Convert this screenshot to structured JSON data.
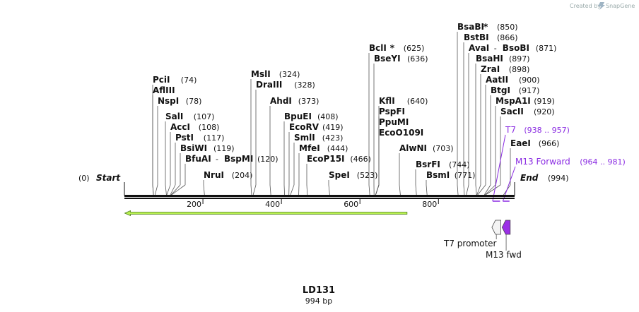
{
  "creator": {
    "label": "Created by",
    "brand": "SnapGene"
  },
  "title": "LD131",
  "subtitle": "994 bp",
  "sequence_length": 994,
  "ends": {
    "start_label": "Start",
    "start_pos": "(0)",
    "end_label": "End",
    "end_pos": "(994)"
  },
  "ticks": [
    {
      "value": 200,
      "label": "200"
    },
    {
      "value": 400,
      "label": "400"
    },
    {
      "value": 600,
      "label": "600"
    },
    {
      "value": 800,
      "label": "800"
    }
  ],
  "enzymes": [
    {
      "name": "PciI",
      "pos": "(74)",
      "site": 74
    },
    {
      "name": "AflIII",
      "pos": "",
      "site": 74
    },
    {
      "name": "NspI",
      "pos": "(78)",
      "site": 78
    },
    {
      "name": "SalI",
      "pos": "(107)",
      "site": 107
    },
    {
      "name": "AccI",
      "pos": "(108)",
      "site": 108
    },
    {
      "name": "PstI",
      "pos": "(117)",
      "site": 117
    },
    {
      "name": "BsiWI",
      "pos": "(119)",
      "site": 119
    },
    {
      "name": "BfuAI",
      "name2": "BspMI",
      "pos": "(120)",
      "site": 120
    },
    {
      "name": "NruI",
      "pos": "(204)",
      "site": 204
    },
    {
      "name": "MslI",
      "pos": "(324)",
      "site": 324
    },
    {
      "name": "DraIII",
      "pos": "(328)",
      "site": 328
    },
    {
      "name": "AhdI",
      "pos": "(373)",
      "site": 373
    },
    {
      "name": "BpuEI",
      "pos": "(408)",
      "site": 408
    },
    {
      "name": "EcoRV",
      "pos": "(419)",
      "site": 419
    },
    {
      "name": "SmlI",
      "pos": "(423)",
      "site": 423
    },
    {
      "name": "MfeI",
      "pos": "(444)",
      "site": 444
    },
    {
      "name": "EcoP15I",
      "pos": "(466)",
      "site": 466
    },
    {
      "name": "SpeI",
      "pos": "(523)",
      "site": 523
    },
    {
      "name": "BclI",
      "star": "*",
      "pos": "(625)",
      "site": 625
    },
    {
      "name": "BseYI",
      "pos": "(636)",
      "site": 636
    },
    {
      "name": "KflI",
      "pos": "(640)",
      "site": 640
    },
    {
      "name": "PspFI",
      "pos": "",
      "site": 640
    },
    {
      "name": "PpuMI",
      "pos": "",
      "site": 640
    },
    {
      "name": "EcoO109I",
      "pos": "",
      "site": 640
    },
    {
      "name": "AlwNI",
      "pos": "(703)",
      "site": 703
    },
    {
      "name": "BsrFI",
      "pos": "(744)",
      "site": 744
    },
    {
      "name": "BsmI",
      "pos": "(771)",
      "site": 771
    },
    {
      "name": "BsaBI",
      "star": "*",
      "pos": "(850)",
      "site": 850
    },
    {
      "name": "BstBI",
      "pos": "(866)",
      "site": 866
    },
    {
      "name": "AvaI",
      "name2": "BsoBI",
      "pos": "(871)",
      "site": 871
    },
    {
      "name": "BsaHI",
      "pos": "(897)",
      "site": 897
    },
    {
      "name": "ZraI",
      "pos": "(898)",
      "site": 898
    },
    {
      "name": "AatII",
      "pos": "(900)",
      "site": 900
    },
    {
      "name": "BtgI",
      "pos": "(917)",
      "site": 917
    },
    {
      "name": "MspA1I",
      "pos": "(919)",
      "site": 919
    },
    {
      "name": "SacII",
      "pos": "(920)",
      "site": 920
    },
    {
      "name": "EaeI",
      "pos": "(966)",
      "site": 966
    }
  ],
  "primers": [
    {
      "name": "T7",
      "range": "(938 .. 957)",
      "start": 938,
      "end": 957
    },
    {
      "name": "M13 Forward",
      "range": "(964 .. 981)",
      "start": 964,
      "end": 981
    }
  ],
  "features": [
    {
      "name": "T7 promoter",
      "start": 938,
      "end": 957,
      "color": "#f4f4f4",
      "direction": "reverse"
    },
    {
      "name": "M13 fwd",
      "start": 964,
      "end": 981,
      "color": "#9b30e6",
      "direction": "reverse"
    }
  ],
  "orf": {
    "start": 1,
    "end": 720,
    "color": "#b8f050",
    "direction": "reverse"
  },
  "colors": {
    "primer": "#8a2be2",
    "backbone": "#111111",
    "orf_outline": "#4a7a1a"
  }
}
